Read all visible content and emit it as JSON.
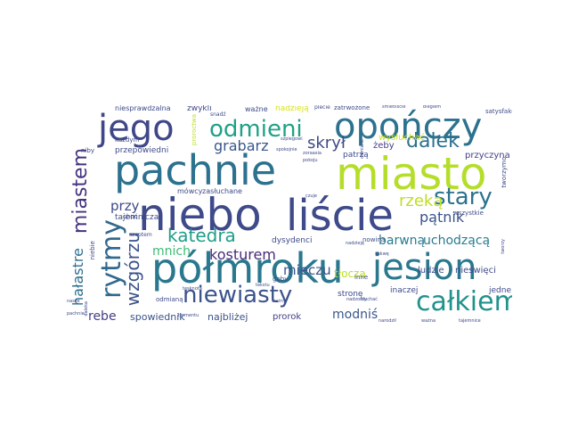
{
  "words": [
    {
      "text": "pachnie",
      "color": "#2c718e"
    },
    {
      "text": "miasto",
      "color": "#b5de2b"
    },
    {
      "text": "niebo",
      "color": "#3e4a89"
    },
    {
      "text": "liście",
      "color": "#3e4a89"
    },
    {
      "text": "opończy",
      "color": "#2c728e"
    },
    {
      "text": "półmroku",
      "color": "#2a788e"
    },
    {
      "text": "jesion",
      "color": "#2a788e"
    },
    {
      "text": "jego",
      "color": "#3f4788"
    },
    {
      "text": "odmieni",
      "color": "#1fa187"
    },
    {
      "text": "rytmy",
      "color": "#31688e"
    },
    {
      "text": "całkiem",
      "color": "#20928c"
    },
    {
      "text": "niewiasty",
      "color": "#3b528b"
    },
    {
      "text": "miastem",
      "color": "#46337e"
    },
    {
      "text": "katedra",
      "color": "#1f9e89"
    },
    {
      "text": "dalek",
      "color": "#2c718e"
    },
    {
      "text": "stary",
      "color": "#2c728e"
    },
    {
      "text": "wzgórzu",
      "color": "#3b528b"
    },
    {
      "text": "grabarz",
      "color": "#39568c"
    },
    {
      "text": "skrył",
      "color": "#3e4a89"
    },
    {
      "text": "rzeką",
      "color": "#bddf26"
    },
    {
      "text": "pątnik",
      "color": "#3b528b"
    },
    {
      "text": "kosturem",
      "color": "#472c7a"
    },
    {
      "text": "barwną",
      "color": "#297b8e"
    },
    {
      "text": "uchodzącą",
      "color": "#297b8e"
    },
    {
      "text": "mieczu",
      "color": "#3b528b"
    },
    {
      "text": "hałastre",
      "color": "#2e6f8e"
    },
    {
      "text": "przy",
      "color": "#3e4a89"
    },
    {
      "text": "mnich",
      "color": "#3dbc74"
    },
    {
      "text": "rebe",
      "color": "#433e85"
    },
    {
      "text": "modniś",
      "color": "#39568c"
    },
    {
      "text": "tłocza",
      "color": "#bddf26"
    },
    {
      "text": "spowiednik",
      "color": "#3b528b"
    },
    {
      "text": "najbliżej",
      "color": "#3b528b"
    },
    {
      "text": "prorok",
      "color": "#433e85"
    },
    {
      "text": "wysłuchać",
      "color": "#d2e21b"
    },
    {
      "text": "przyczyna",
      "color": "#433e85"
    },
    {
      "text": "żeby",
      "color": "#433e85"
    },
    {
      "text": "dysydenci",
      "color": "#3e4a89"
    },
    {
      "text": "nowina",
      "color": "#3e4a89"
    },
    {
      "text": "ludzie",
      "color": "#3e4a89"
    },
    {
      "text": "nieświęci",
      "color": "#3e4a89"
    },
    {
      "text": "inaczej",
      "color": "#3e4a89"
    },
    {
      "text": "stronę",
      "color": "#3e4a89"
    },
    {
      "text": "jedne",
      "color": "#3e4a89"
    },
    {
      "text": "patrzą",
      "color": "#3e4a89"
    },
    {
      "text": "wszystkie",
      "color": "#3e4a89"
    },
    {
      "text": "tajemnicza",
      "color": "#3e4a89"
    },
    {
      "text": "przepowiedni",
      "color": "#3e4a89"
    },
    {
      "text": "zasłuchane",
      "color": "#3e4a89"
    },
    {
      "text": "mówcy",
      "color": "#3e4a89"
    },
    {
      "text": "niesprawdzalna",
      "color": "#3e4a89"
    },
    {
      "text": "zwykli",
      "color": "#3e4a89"
    },
    {
      "text": "ważne",
      "color": "#3e4a89"
    },
    {
      "text": "nadzieją",
      "color": "#d8e219"
    },
    {
      "text": "zatrwożone",
      "color": "#3e4a89"
    },
    {
      "text": "satysfakcje",
      "color": "#3e4a89"
    },
    {
      "text": "niby",
      "color": "#3e4a89"
    },
    {
      "text": "każdym",
      "color": "#3e4a89"
    },
    {
      "text": "choć",
      "color": "#3e4a89"
    },
    {
      "text": "odmianą",
      "color": "#3e4a89"
    },
    {
      "text": "inne",
      "color": "#3e4a89"
    },
    {
      "text": "szeptem",
      "color": "#3e4a89"
    },
    {
      "text": "proroctwa",
      "color": "#bddf26"
    },
    {
      "text": "snadź",
      "color": "#3e4a89"
    },
    {
      "text": "plecie",
      "color": "#3e4a89"
    },
    {
      "text": "śmietliście",
      "color": "#3e4a89"
    },
    {
      "text": "biegiem",
      "color": "#3e4a89"
    },
    {
      "text": "szpiegowi",
      "color": "#3e4a89"
    },
    {
      "text": "zoraasia",
      "color": "#3e4a89"
    },
    {
      "text": "spokojnie",
      "color": "#3e4a89"
    },
    {
      "text": "pokoju",
      "color": "#3e4a89"
    },
    {
      "text": "odmiane",
      "color": "#3e4a89"
    },
    {
      "text": "nadzieję",
      "color": "#3e4a89"
    },
    {
      "text": "czuje",
      "color": "#3e4a89"
    },
    {
      "text": "sakwę",
      "color": "#3e4a89"
    },
    {
      "text": "tworzymo",
      "color": "#3e4a89"
    },
    {
      "text": "niebie",
      "color": "#3e4a89"
    },
    {
      "text": "tworzy",
      "color": "#3e4a89"
    },
    {
      "text": "tęsknota",
      "color": "#3e4a89"
    },
    {
      "text": "tajemnice",
      "color": "#3e4a89"
    },
    {
      "text": "ważna",
      "color": "#3e4a89"
    },
    {
      "text": "pachnie",
      "color": "#3e4a89"
    },
    {
      "text": "termentu",
      "color": "#3e4a89"
    },
    {
      "text": "daleka",
      "color": "#3e4a89"
    },
    {
      "text": "słuchać",
      "color": "#3e4a89"
    },
    {
      "text": "nadzorcy",
      "color": "#3e4a89"
    },
    {
      "text": "tekstu",
      "color": "#3e4a89"
    },
    {
      "text": "gęby",
      "color": "#3e4a89"
    },
    {
      "text": "nasze",
      "color": "#3e4a89"
    },
    {
      "text": "narodził",
      "color": "#3e4a89"
    },
    {
      "text": "ważny",
      "color": "#3e4a89"
    }
  ]
}
